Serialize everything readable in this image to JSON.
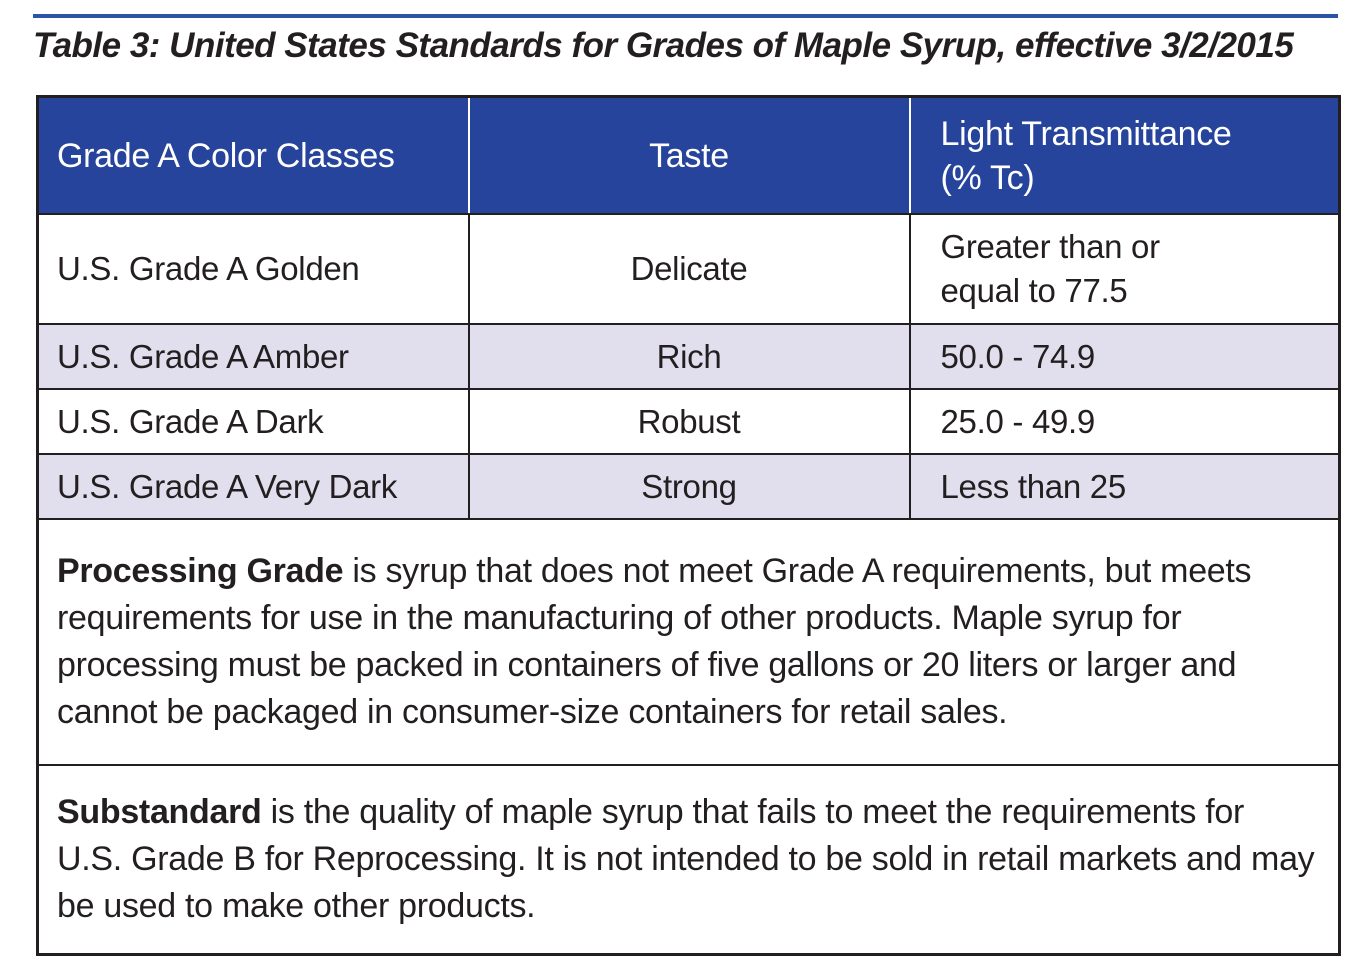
{
  "page": {
    "title": "Table 3: United States Standards for Grades of Maple Syrup, effective 3/2/2015"
  },
  "colors": {
    "header_blue": "#27449c",
    "top_rule_blue": "#2d53a8",
    "alt_row_lavender": "#e1dfee",
    "border_black": "#231f20"
  },
  "table": {
    "headers": [
      "Grade A Color Classes",
      "Taste",
      "Light Transmittance\n(% Tc)"
    ],
    "rows": [
      {
        "grade": "U.S. Grade A Golden",
        "taste": "Delicate",
        "transmittance": "Greater than or\nequal to 77.5"
      },
      {
        "grade": "U.S. Grade A Amber",
        "taste": "Rich",
        "transmittance": "50.0 - 74.9"
      },
      {
        "grade": "U.S. Grade A Dark",
        "taste": "Robust",
        "transmittance": "25.0 - 49.9"
      },
      {
        "grade": "U.S. Grade A Very Dark",
        "taste": "Strong",
        "transmittance": "Less than 25"
      }
    ],
    "notes": [
      {
        "lead": "Processing Grade",
        "text": " is syrup that does not meet Grade A requirements, but meets requirements for use in the manufacturing of other products. Maple syrup for processing must be packed in containers of five gallons or 20 liters or larger and cannot be packaged in consumer-size containers for retail sales."
      },
      {
        "lead": "Substandard",
        "text": " is the quality of maple syrup that fails to meet the requirements for U.S. Grade B for Reprocessing. It is not intended to be sold in retail markets and may be used to make other products."
      }
    ]
  }
}
